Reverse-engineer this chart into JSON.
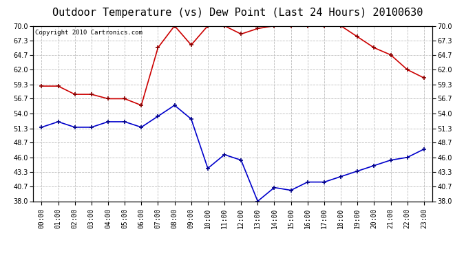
{
  "title": "Outdoor Temperature (vs) Dew Point (Last 24 Hours) 20100630",
  "copyright": "Copyright 2010 Cartronics.com",
  "hours": [
    "00:00",
    "01:00",
    "02:00",
    "03:00",
    "04:00",
    "05:00",
    "06:00",
    "07:00",
    "08:00",
    "09:00",
    "10:00",
    "11:00",
    "12:00",
    "13:00",
    "14:00",
    "15:00",
    "16:00",
    "17:00",
    "18:00",
    "19:00",
    "20:00",
    "21:00",
    "22:00",
    "23:00"
  ],
  "temp": [
    59.0,
    59.0,
    57.5,
    57.5,
    56.7,
    56.7,
    55.5,
    66.0,
    70.0,
    66.5,
    70.0,
    70.0,
    68.5,
    69.5,
    70.0,
    70.0,
    70.0,
    70.0,
    70.0,
    68.0,
    66.0,
    64.7,
    62.0,
    60.5
  ],
  "dew": [
    51.5,
    52.5,
    51.5,
    51.5,
    52.5,
    52.5,
    51.5,
    53.5,
    55.5,
    53.0,
    44.0,
    46.5,
    45.5,
    38.0,
    40.5,
    40.0,
    41.5,
    41.5,
    42.5,
    43.5,
    44.5,
    45.5,
    46.0,
    47.5
  ],
  "temp_color": "#cc0000",
  "dew_color": "#0000cc",
  "ylim": [
    38.0,
    70.0
  ],
  "yticks": [
    38.0,
    40.7,
    43.3,
    46.0,
    48.7,
    51.3,
    54.0,
    56.7,
    59.3,
    62.0,
    64.7,
    67.3,
    70.0
  ],
  "bg_color": "#ffffff",
  "plot_bg": "#ffffff",
  "grid_color": "#bbbbbb",
  "title_fontsize": 11,
  "copyright_fontsize": 6.5,
  "tick_fontsize": 7,
  "marker": "+"
}
